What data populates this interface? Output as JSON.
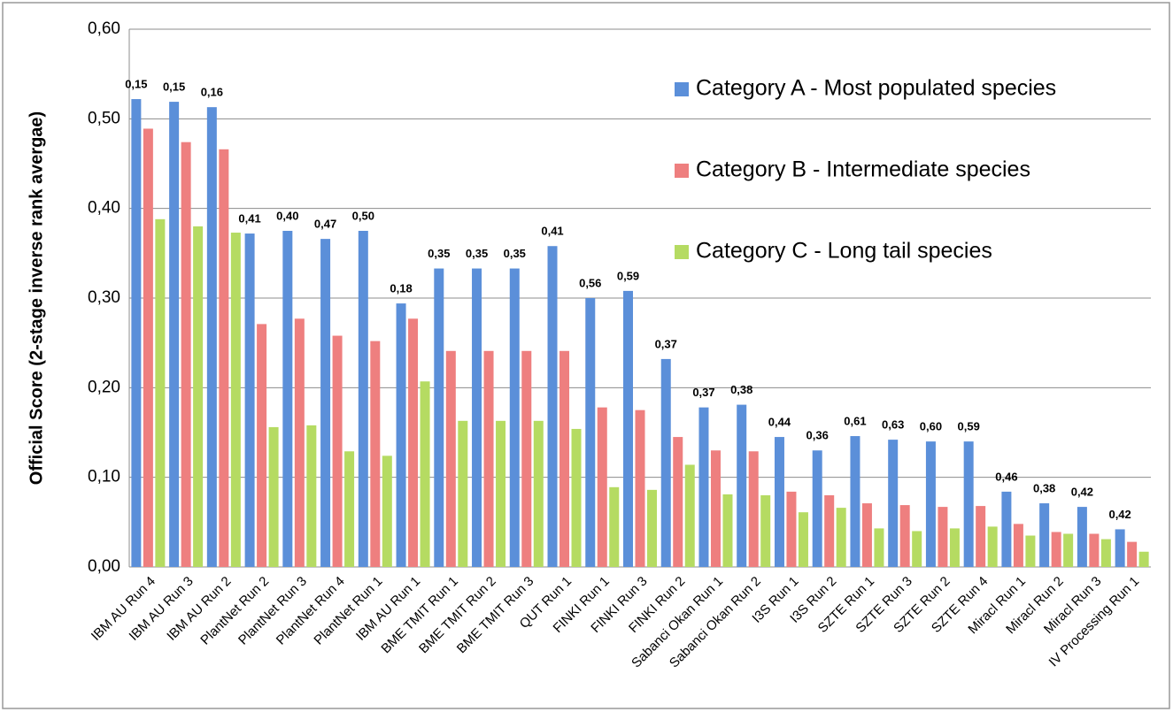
{
  "chart_data": {
    "type": "bar",
    "y_label": "Official Score (2-stage inverse rank avergae)",
    "categories": [
      "IBM AU Run 4",
      "IBM AU Run 3",
      "IBM AU Run 2",
      "PlantNet Run 2",
      "PlantNet Run 3",
      "PlantNet Run 4",
      "PlantNet Run 1",
      "IBM AU Run 1",
      "BME TMIT Run 1",
      "BME TMIT Run 2",
      "BME TMIT Run 3",
      "QUT Run 1",
      "FINKI Run 1",
      "FINKI Run 3",
      "FINKI Run 2",
      "Sabanci Okan Run 1",
      "Sabanci Okan Run 2",
      "I3S Run 1",
      "I3S Run 2",
      "SZTE Run 1",
      "SZTE Run 3",
      "SZTE Run 2",
      "SZTE Run 4",
      "Miracl Run 1",
      "Miracl Run 2",
      "Miracl Run 3",
      "IV Processing Run 1"
    ],
    "group_labels": [
      "0,15",
      "0,15",
      "0,16",
      "0,41",
      "0,40",
      "0,47",
      "0,50",
      "0,18",
      "0,35",
      "0,35",
      "0,35",
      "0,41",
      "0,56",
      "0,59",
      "0,37",
      "0,37",
      "0,38",
      "0,44",
      "0,36",
      "0,61",
      "0,63",
      "0,60",
      "0,59",
      "0,46",
      "0,38",
      "0,42",
      "0,42"
    ],
    "series": [
      {
        "name": "Category A - Most populated species",
        "color": "#5b8fd9",
        "values": [
          0.522,
          0.519,
          0.513,
          0.372,
          0.375,
          0.366,
          0.375,
          0.294,
          0.333,
          0.333,
          0.333,
          0.358,
          0.3,
          0.308,
          0.232,
          0.178,
          0.181,
          0.145,
          0.13,
          0.146,
          0.142,
          0.14,
          0.14,
          0.084,
          0.071,
          0.067,
          0.042
        ]
      },
      {
        "name": "Category B - Intermediate species",
        "color": "#ee7f7f",
        "values": [
          0.489,
          0.474,
          0.466,
          0.271,
          0.277,
          0.258,
          0.252,
          0.277,
          0.241,
          0.241,
          0.241,
          0.241,
          0.178,
          0.175,
          0.145,
          0.13,
          0.129,
          0.084,
          0.08,
          0.071,
          0.069,
          0.067,
          0.068,
          0.048,
          0.039,
          0.037,
          0.028
        ]
      },
      {
        "name": "Category C - Long tail species",
        "color": "#b5db62",
        "values": [
          0.388,
          0.38,
          0.373,
          0.156,
          0.158,
          0.129,
          0.124,
          0.207,
          0.163,
          0.163,
          0.163,
          0.154,
          0.089,
          0.086,
          0.114,
          0.081,
          0.08,
          0.061,
          0.066,
          0.043,
          0.04,
          0.043,
          0.045,
          0.035,
          0.037,
          0.031,
          0.017
        ]
      }
    ],
    "ylim": [
      0,
      0.6
    ],
    "yticks": [
      {
        "value": 0,
        "label": "0,00"
      },
      {
        "value": 0.1,
        "label": "0,10"
      },
      {
        "value": 0.2,
        "label": "0,20"
      },
      {
        "value": 0.3,
        "label": "0,30"
      },
      {
        "value": 0.4,
        "label": "0,40"
      },
      {
        "value": 0.5,
        "label": "0,50"
      },
      {
        "value": 0.6,
        "label": "0,60"
      }
    ],
    "grid": true,
    "legend": "top-right"
  }
}
